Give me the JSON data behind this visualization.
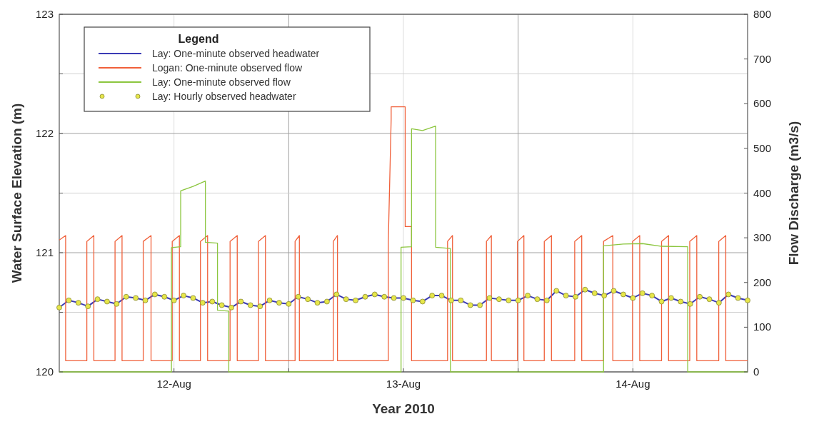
{
  "chart_data": {
    "type": "line",
    "xlabel": "Year 2010",
    "ylabel": "Water Surface Elevation (m)",
    "y2label": "Flow Discharge (m3/s)",
    "legend_title": "Legend",
    "legend": "top left",
    "grid": true,
    "xlim": [
      "2010-08-12T00:00",
      "2010-08-15T00:00"
    ],
    "xticks": [
      {
        "value": "2010-08-12T12:00",
        "label": "12-Aug"
      },
      {
        "value": "2010-08-13T00:00",
        "label": null
      },
      {
        "value": "2010-08-13T12:00",
        "label": "13-Aug"
      },
      {
        "value": "2010-08-14T00:00",
        "label": null
      },
      {
        "value": "2010-08-14T12:00",
        "label": "14-Aug"
      }
    ],
    "ylim": [
      120,
      123
    ],
    "yticks": [
      120,
      {
        "value": 120.5,
        "label": null
      },
      121,
      {
        "value": 121.5,
        "label": null
      },
      122,
      {
        "value": 122.5,
        "label": null
      },
      123
    ],
    "y2lim": [
      0,
      800
    ],
    "y2ticks": [
      0,
      100,
      200,
      300,
      400,
      500,
      600,
      700,
      800
    ],
    "series": [
      {
        "name": "Lay: One-minute observed headwater",
        "color": "#3b3bb5",
        "x": [
          "2010-08-12T00:00",
          "2010-08-12T01:00",
          "2010-08-12T02:00",
          "2010-08-12T03:00",
          "2010-08-12T04:00",
          "2010-08-12T05:00",
          "2010-08-12T06:00",
          "2010-08-12T07:00",
          "2010-08-12T08:00",
          "2010-08-12T09:00",
          "2010-08-12T10:00",
          "2010-08-12T11:00",
          "2010-08-12T12:00",
          "2010-08-12T13:00",
          "2010-08-12T14:00",
          "2010-08-12T15:00",
          "2010-08-12T16:00",
          "2010-08-12T17:00",
          "2010-08-12T18:00",
          "2010-08-12T19:00",
          "2010-08-12T20:00",
          "2010-08-12T21:00",
          "2010-08-12T22:00",
          "2010-08-12T23:00",
          "2010-08-13T00:00",
          "2010-08-13T01:00",
          "2010-08-13T02:00",
          "2010-08-13T03:00",
          "2010-08-13T04:00",
          "2010-08-13T05:00",
          "2010-08-13T06:00",
          "2010-08-13T07:00",
          "2010-08-13T08:00",
          "2010-08-13T09:00",
          "2010-08-13T10:00",
          "2010-08-13T11:00",
          "2010-08-13T12:00",
          "2010-08-13T13:00",
          "2010-08-13T14:00",
          "2010-08-13T15:00",
          "2010-08-13T16:00",
          "2010-08-13T17:00",
          "2010-08-13T18:00",
          "2010-08-13T19:00",
          "2010-08-13T20:00",
          "2010-08-13T21:00",
          "2010-08-13T22:00",
          "2010-08-13T23:00",
          "2010-08-14T00:00",
          "2010-08-14T01:00",
          "2010-08-14T02:00",
          "2010-08-14T03:00",
          "2010-08-14T04:00",
          "2010-08-14T05:00",
          "2010-08-14T06:00",
          "2010-08-14T07:00",
          "2010-08-14T08:00",
          "2010-08-14T09:00",
          "2010-08-14T10:00",
          "2010-08-14T11:00",
          "2010-08-14T12:00",
          "2010-08-14T13:00",
          "2010-08-14T14:00",
          "2010-08-14T15:00",
          "2010-08-14T16:00",
          "2010-08-14T17:00",
          "2010-08-14T18:00",
          "2010-08-14T19:00",
          "2010-08-14T20:00",
          "2010-08-14T21:00",
          "2010-08-14T22:00",
          "2010-08-14T23:00",
          "2010-08-15T00:00"
        ],
        "values": [
          120.54,
          120.6,
          120.58,
          120.55,
          120.61,
          120.59,
          120.57,
          120.63,
          120.62,
          120.6,
          120.65,
          120.63,
          120.6,
          120.64,
          120.62,
          120.58,
          120.59,
          120.56,
          120.54,
          120.59,
          120.56,
          120.55,
          120.6,
          120.58,
          120.57,
          120.63,
          120.61,
          120.58,
          120.59,
          120.65,
          120.61,
          120.6,
          120.63,
          120.65,
          120.63,
          120.62,
          120.62,
          120.6,
          120.59,
          120.64,
          120.64,
          120.6,
          120.6,
          120.56,
          120.56,
          120.62,
          120.61,
          120.6,
          120.6,
          120.64,
          120.61,
          120.6,
          120.68,
          120.64,
          120.63,
          120.69,
          120.66,
          120.64,
          120.68,
          120.65,
          120.62,
          120.66,
          120.64,
          120.59,
          120.62,
          120.59,
          120.57,
          120.63,
          120.61,
          120.58,
          120.65,
          120.62,
          120.6
        ]
      },
      {
        "name": "Logan: One-minute observed flow",
        "color": "#f0603a",
        "axis": "y2",
        "x": [
          "2010-08-12T00:00",
          "2010-08-12T00:40",
          "2010-08-12T00:40",
          "2010-08-12T02:53",
          "2010-08-12T02:53",
          "2010-08-12T03:37",
          "2010-08-12T03:37",
          "2010-08-12T05:50",
          "2010-08-12T05:50",
          "2010-08-12T06:34",
          "2010-08-12T06:34",
          "2010-08-12T08:47",
          "2010-08-12T08:47",
          "2010-08-12T09:36",
          "2010-08-12T09:36",
          "2010-08-12T11:49",
          "2010-08-12T11:49",
          "2010-08-12T12:34",
          "2010-08-12T12:34",
          "2010-08-12T14:46",
          "2010-08-12T14:46",
          "2010-08-12T15:31",
          "2010-08-12T15:31",
          "2010-08-12T17:52",
          "2010-08-12T17:52",
          "2010-08-12T18:37",
          "2010-08-12T18:37",
          "2010-08-12T20:50",
          "2010-08-12T20:50",
          "2010-08-12T21:34",
          "2010-08-12T21:34",
          "2010-08-13T00:40",
          "2010-08-13T00:40",
          "2010-08-13T01:07",
          "2010-08-13T01:07",
          "2010-08-13T04:40",
          "2010-08-13T04:40",
          "2010-08-13T05:06",
          "2010-08-13T05:06",
          "2010-08-13T10:25",
          "2010-08-13T10:25",
          "2010-08-13T10:43",
          "2010-08-13T10:43",
          "2010-08-13T12:11",
          "2010-08-13T12:11",
          "2010-08-13T12:51",
          "2010-08-13T12:51",
          "2010-08-13T16:37",
          "2010-08-13T16:37",
          "2010-08-13T17:08",
          "2010-08-13T17:08",
          "2010-08-13T20:41",
          "2010-08-13T20:41",
          "2010-08-13T21:12",
          "2010-08-13T21:12",
          "2010-08-13T23:56",
          "2010-08-13T23:56",
          "2010-08-14T00:36",
          "2010-08-14T00:36",
          "2010-08-14T02:44",
          "2010-08-14T02:44",
          "2010-08-14T03:29",
          "2010-08-14T03:29",
          "2010-08-14T05:55",
          "2010-08-14T05:55",
          "2010-08-14T06:39",
          "2010-08-14T06:39",
          "2010-08-14T08:56",
          "2010-08-14T08:56",
          "2010-08-14T09:54",
          "2010-08-14T09:54",
          "2010-08-14T11:58",
          "2010-08-14T11:58",
          "2010-08-14T12:43",
          "2010-08-14T12:43",
          "2010-08-14T15:00",
          "2010-08-14T15:00",
          "2010-08-14T15:44",
          "2010-08-14T15:44",
          "2010-08-14T17:57",
          "2010-08-14T17:57",
          "2010-08-14T18:41",
          "2010-08-14T18:41",
          "2010-08-14T20:59",
          "2010-08-14T20:59",
          "2010-08-14T21:43",
          "2010-08-14T21:43",
          "2010-08-15T00:00"
        ],
        "values": [
          295,
          305,
          25,
          25,
          292,
          305,
          25,
          25,
          292,
          305,
          25,
          25,
          292,
          305,
          25,
          25,
          292,
          305,
          25,
          25,
          292,
          305,
          25,
          25,
          292,
          305,
          25,
          25,
          292,
          305,
          25,
          25,
          292,
          305,
          25,
          25,
          292,
          305,
          25,
          25,
          290,
          565,
          593,
          593,
          325,
          325,
          25,
          25,
          292,
          305,
          25,
          25,
          292,
          305,
          25,
          25,
          292,
          305,
          25,
          25,
          292,
          305,
          25,
          25,
          292,
          305,
          25,
          25,
          292,
          305,
          25,
          25,
          292,
          305,
          25,
          25,
          292,
          305,
          25,
          25,
          292,
          305,
          25,
          25,
          292,
          305,
          25,
          25
        ]
      },
      {
        "name": "Lay: One-minute observed flow",
        "color": "#8cc63f",
        "axis": "y2",
        "x": [
          "2010-08-12T00:00",
          "2010-08-12T11:44",
          "2010-08-12T11:44",
          "2010-08-12T12:42",
          "2010-08-12T12:42",
          "2010-08-12T14:00",
          "2010-08-12T15:17",
          "2010-08-12T15:17",
          "2010-08-12T16:33",
          "2010-08-12T16:33",
          "2010-08-12T17:44",
          "2010-08-12T17:44",
          "2010-08-13T11:45",
          "2010-08-13T11:45",
          "2010-08-13T12:51",
          "2010-08-13T12:51",
          "2010-08-13T14:00",
          "2010-08-13T15:22",
          "2010-08-13T15:22",
          "2010-08-13T16:55",
          "2010-08-13T16:55",
          "2010-08-14T08:56",
          "2010-08-14T08:56",
          "2010-08-14T11:00",
          "2010-08-14T13:00",
          "2010-08-14T15:00",
          "2010-08-14T17:44",
          "2010-08-14T17:44",
          "2010-08-15T00:00"
        ],
        "values": [
          0,
          0,
          278,
          280,
          405,
          415,
          427,
          290,
          288,
          138,
          136,
          0,
          0,
          279,
          280,
          544,
          540,
          550,
          279,
          276,
          0,
          0,
          282,
          286,
          287,
          281,
          280,
          0,
          0
        ]
      },
      {
        "name": "Lay: Hourly observed headwater",
        "color": "#e6e64a",
        "type": "scatter",
        "marker": "circle",
        "x": [
          "2010-08-12T00:00",
          "2010-08-12T01:00",
          "2010-08-12T02:00",
          "2010-08-12T03:00",
          "2010-08-12T04:00",
          "2010-08-12T05:00",
          "2010-08-12T06:00",
          "2010-08-12T07:00",
          "2010-08-12T08:00",
          "2010-08-12T09:00",
          "2010-08-12T10:00",
          "2010-08-12T11:00",
          "2010-08-12T12:00",
          "2010-08-12T13:00",
          "2010-08-12T14:00",
          "2010-08-12T15:00",
          "2010-08-12T16:00",
          "2010-08-12T17:00",
          "2010-08-12T18:00",
          "2010-08-12T19:00",
          "2010-08-12T20:00",
          "2010-08-12T21:00",
          "2010-08-12T22:00",
          "2010-08-12T23:00",
          "2010-08-13T00:00",
          "2010-08-13T01:00",
          "2010-08-13T02:00",
          "2010-08-13T03:00",
          "2010-08-13T04:00",
          "2010-08-13T05:00",
          "2010-08-13T06:00",
          "2010-08-13T07:00",
          "2010-08-13T08:00",
          "2010-08-13T09:00",
          "2010-08-13T10:00",
          "2010-08-13T11:00",
          "2010-08-13T12:00",
          "2010-08-13T13:00",
          "2010-08-13T14:00",
          "2010-08-13T15:00",
          "2010-08-13T16:00",
          "2010-08-13T17:00",
          "2010-08-13T18:00",
          "2010-08-13T19:00",
          "2010-08-13T20:00",
          "2010-08-13T21:00",
          "2010-08-13T22:00",
          "2010-08-13T23:00",
          "2010-08-14T00:00",
          "2010-08-14T01:00",
          "2010-08-14T02:00",
          "2010-08-14T03:00",
          "2010-08-14T04:00",
          "2010-08-14T05:00",
          "2010-08-14T06:00",
          "2010-08-14T07:00",
          "2010-08-14T08:00",
          "2010-08-14T09:00",
          "2010-08-14T10:00",
          "2010-08-14T11:00",
          "2010-08-14T12:00",
          "2010-08-14T13:00",
          "2010-08-14T14:00",
          "2010-08-14T15:00",
          "2010-08-14T16:00",
          "2010-08-14T17:00",
          "2010-08-14T18:00",
          "2010-08-14T19:00",
          "2010-08-14T20:00",
          "2010-08-14T21:00",
          "2010-08-14T22:00",
          "2010-08-14T23:00",
          "2010-08-15T00:00"
        ],
        "values": [
          120.54,
          120.6,
          120.58,
          120.55,
          120.61,
          120.59,
          120.57,
          120.63,
          120.62,
          120.6,
          120.65,
          120.63,
          120.6,
          120.64,
          120.62,
          120.58,
          120.59,
          120.56,
          120.54,
          120.59,
          120.56,
          120.55,
          120.6,
          120.58,
          120.57,
          120.63,
          120.61,
          120.58,
          120.59,
          120.65,
          120.61,
          120.6,
          120.63,
          120.65,
          120.63,
          120.62,
          120.62,
          120.6,
          120.59,
          120.64,
          120.64,
          120.6,
          120.6,
          120.56,
          120.56,
          120.62,
          120.61,
          120.6,
          120.6,
          120.64,
          120.61,
          120.6,
          120.68,
          120.64,
          120.63,
          120.69,
          120.66,
          120.64,
          120.68,
          120.65,
          120.62,
          120.66,
          120.64,
          120.59,
          120.62,
          120.59,
          120.57,
          120.63,
          120.61,
          120.58,
          120.65,
          120.62,
          120.6
        ]
      }
    ]
  }
}
